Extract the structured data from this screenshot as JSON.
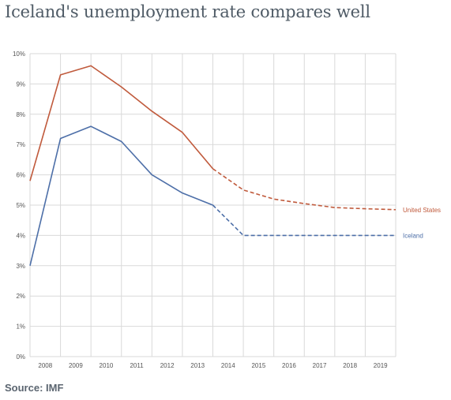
{
  "page": {
    "title": "Iceland's unemployment rate compares well",
    "source": "Source: IMF"
  },
  "colors": {
    "us": "#c05a3c",
    "iceland": "#4d6fa8",
    "grid": "#d9d9d9",
    "text": "#555555"
  },
  "chart_data": {
    "type": "line",
    "title": "Iceland's unemployment rate compares well",
    "xlabel": "",
    "ylabel": "",
    "categories": [
      "2008",
      "2009",
      "2010",
      "2011",
      "2012",
      "2013",
      "2014",
      "2015",
      "2016",
      "2017",
      "2018",
      "2019"
    ],
    "x_ticks": [
      2008,
      2009,
      2010,
      2011,
      2012,
      2013,
      2014,
      2015,
      2016,
      2017,
      2018,
      2019
    ],
    "x_range": [
      2007.5,
      2019.5
    ],
    "ylim": [
      0,
      10
    ],
    "y_ticks": [
      0,
      1,
      2,
      3,
      4,
      5,
      6,
      7,
      8,
      9,
      10
    ],
    "y_tick_format": "{v}%",
    "grid": true,
    "legend": "inline at right end of lines",
    "series": [
      {
        "name": "United States",
        "color": "#c05a3c",
        "x": [
          2007.5,
          2008.5,
          2009.5,
          2010.5,
          2011.5,
          2012.5,
          2013.5,
          2014.5,
          2015.5,
          2016.5,
          2017.5,
          2018.5,
          2019.5
        ],
        "y": [
          5.8,
          9.3,
          9.6,
          8.9,
          8.1,
          7.4,
          6.2,
          5.5,
          5.2,
          5.05,
          4.92,
          4.88,
          4.85
        ],
        "actual_until": 2013.5
      },
      {
        "name": "Iceland",
        "color": "#4d6fa8",
        "x": [
          2007.5,
          2008.5,
          2009.5,
          2010.5,
          2011.5,
          2012.5,
          2013.5,
          2014.5,
          2015.5,
          2016.5,
          2017.5,
          2018.5,
          2019.5
        ],
        "y": [
          3.0,
          7.2,
          7.6,
          7.1,
          6.0,
          5.4,
          5.0,
          4.0,
          4.0,
          4.0,
          4.0,
          4.0,
          4.0
        ],
        "actual_until": 2013.5
      }
    ]
  }
}
